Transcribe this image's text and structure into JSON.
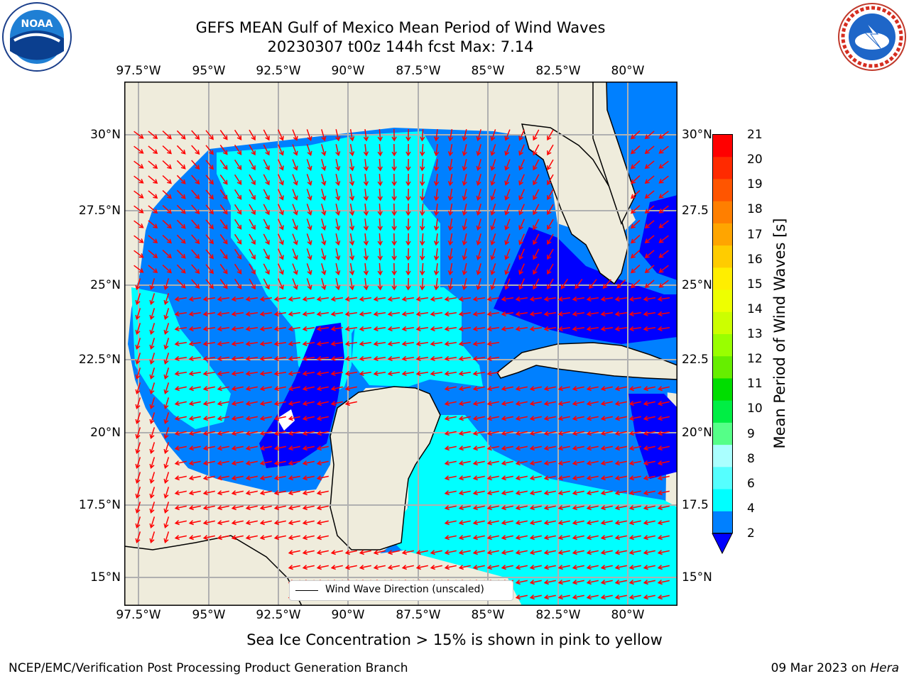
{
  "title_line1": "GEFS MEAN Gulf of Mexico Mean Period of Wind Waves",
  "title_line2": "20230307 t00z 144h fcst   Max: 7.14",
  "map": {
    "lon_ticks": [
      "97.5°W",
      "95°W",
      "92.5°W",
      "90°W",
      "87.5°W",
      "85°W",
      "82.5°W",
      "80°W"
    ],
    "lat_ticks_left": [
      "30°N",
      "27.5°N",
      "25°N",
      "22.5°N",
      "20°N",
      "17.5°N",
      "15°N"
    ],
    "lat_ticks_right": [
      "30°N",
      "27.5",
      "25°N",
      "22.5",
      "20°N",
      "17.5",
      "15°N"
    ],
    "lon_range": [
      -98,
      -78.25
    ],
    "lat_range": [
      14.05,
      31.8
    ],
    "land_color": "#efecdc",
    "ocean_colors": {
      "2-4": "#0080ff",
      "4-6": "#00ffff",
      "below-2": "#0000ff",
      "6-8": "#40ffff"
    },
    "arrow_color": "#ff0000",
    "legend_text": "Wind Wave Direction (unscaled)"
  },
  "colorbar": {
    "title": "Mean Period of Wind Waves [s]",
    "labels": [
      "21",
      "20",
      "19",
      "18",
      "17",
      "16",
      "15",
      "14",
      "13",
      "12",
      "11",
      "10",
      "9",
      "8",
      "6",
      "4",
      "2"
    ],
    "colors": [
      "#ff0000",
      "#ff2a00",
      "#ff5500",
      "#ff7f00",
      "#ffa500",
      "#ffcc00",
      "#ffee00",
      "#eeff00",
      "#ccff00",
      "#99ff00",
      "#66ee00",
      "#00dd00",
      "#00ee44",
      "#55ff88",
      "#aaffff",
      "#55ffff",
      "#00ffff",
      "#0080ff"
    ],
    "underflow_color": "#0000ff"
  },
  "note": "Sea Ice Concentration > 15% is shown in pink to yellow",
  "footer_left": "NCEP/EMC/Verification Post Processing Product Generation Branch",
  "footer_right_prefix": "09 Mar 2023 on ",
  "footer_right_host": "Hera",
  "logos": {
    "left": "NOAA",
    "right": "NATIONAL WEATHER SERVICE"
  }
}
